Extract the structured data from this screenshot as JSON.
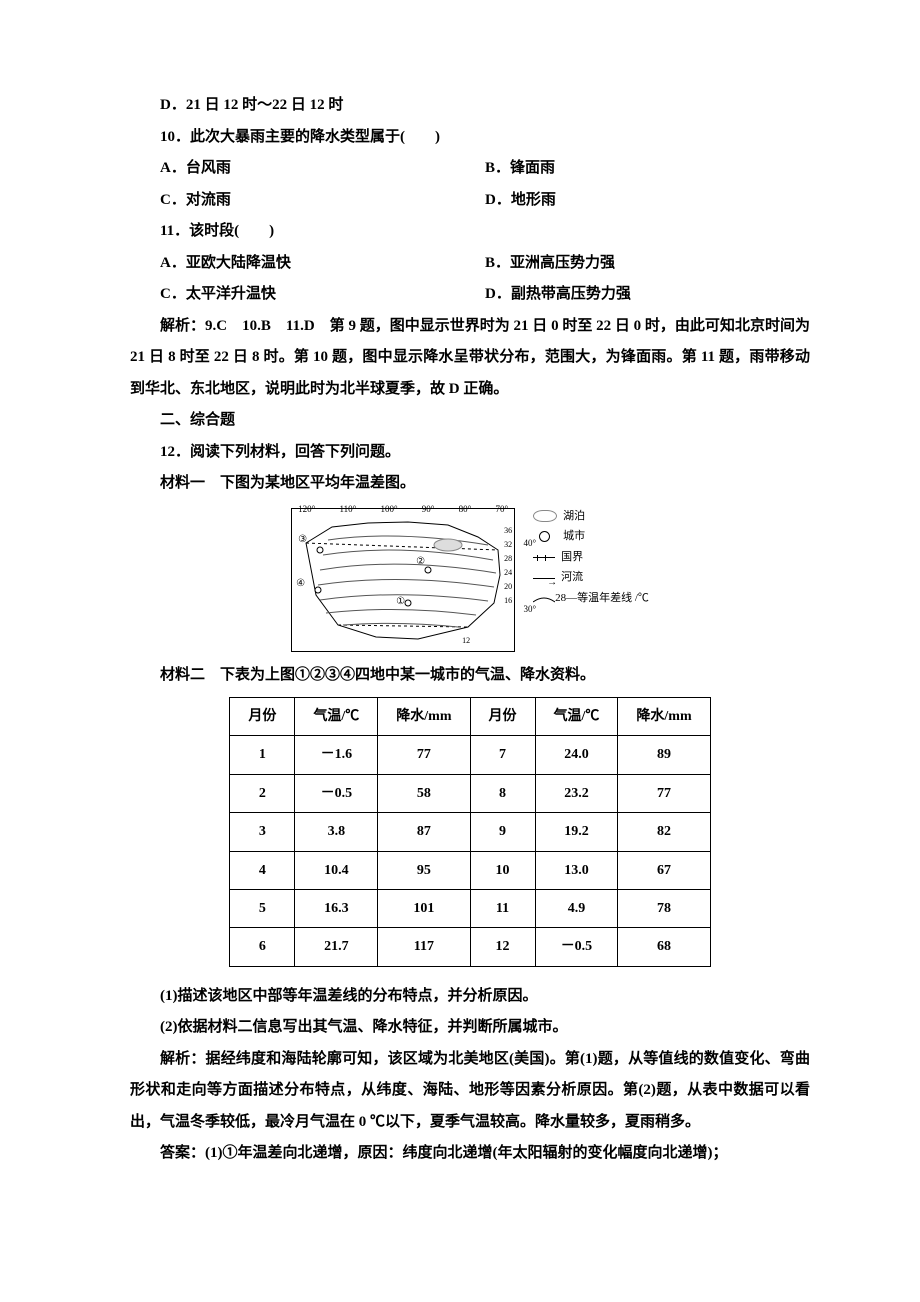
{
  "q9_optD": "D．21 日 12 时～22 日 12 时",
  "q10": {
    "stem": "10．此次大暴雨主要的降水类型属于(　　)",
    "A": "A．台风雨",
    "B": "B．锋面雨",
    "C": "C．对流雨",
    "D": "D．地形雨"
  },
  "q11": {
    "stem": "11．该时段(　　)",
    "A": "A．亚欧大陆降温快",
    "B": "B．亚洲高压势力强",
    "C": "C．太平洋升温快",
    "D": "D．副热带高压势力强"
  },
  "expl1": "解析：9.C　10.B　11.D　第 9 题，图中显示世界时为 21 日 0 时至 22 日 0 时，由此可知北京时间为 21 日 8 时至 22 日 8 时。第 10 题，图中显示降水呈带状分布，范围大，为锋面雨。第 11 题，雨带移动到华北、东北地区，说明此时为北半球夏季，故 D 正确。",
  "sec2": "二、综合题",
  "q12": "12．阅读下列材料，回答下列问题。",
  "mat1": "材料一　下图为某地区平均年温差图。",
  "map": {
    "lon_labels": [
      "120°",
      "110°",
      "100°",
      "90°",
      "80°",
      "70°"
    ],
    "lat_labels": [
      "40°",
      "30°"
    ],
    "iso_values": [
      "36",
      "32",
      "28",
      "24",
      "20",
      "16",
      "12"
    ],
    "city_marks": [
      "①",
      "②",
      "③",
      "④"
    ],
    "legend": {
      "lake": "湖泊",
      "city": "城市",
      "border": "国界",
      "river": "河流",
      "iso": "等温年差线 /℃",
      "iso_sample": "28"
    }
  },
  "mat2": "材料二　下表为上图①②③④四地中某一城市的气温、降水资料。",
  "table": {
    "headers": [
      "月份",
      "气温/℃",
      "降水/mm",
      "月份",
      "气温/℃",
      "降水/mm"
    ],
    "rows": [
      [
        "1",
        "－1.6",
        "77",
        "7",
        "24.0",
        "89"
      ],
      [
        "2",
        "－0.5",
        "58",
        "8",
        "23.2",
        "77"
      ],
      [
        "3",
        "3.8",
        "87",
        "9",
        "19.2",
        "82"
      ],
      [
        "4",
        "10.4",
        "95",
        "10",
        "13.0",
        "67"
      ],
      [
        "5",
        "16.3",
        "101",
        "11",
        "4.9",
        "78"
      ],
      [
        "6",
        "21.7",
        "117",
        "12",
        "－0.5",
        "68"
      ]
    ]
  },
  "sub1": "(1)描述该地区中部等年温差线的分布特点，并分析原因。",
  "sub2": "(2)依据材料二信息写出其气温、降水特征，并判断所属城市。",
  "expl2": "解析：据经纬度和海陆轮廓可知，该区域为北美地区(美国)。第(1)题，从等值线的数值变化、弯曲形状和走向等方面描述分布特点，从纬度、海陆、地形等因素分析原因。第(2)题，从表中数据可以看出，气温冬季较低，最冷月气温在 0 ℃以下，夏季气温较高。降水量较多，夏雨稍多。",
  "ans": "答案：(1)①年温差向北递增，原因：纬度向北递增(年太阳辐射的变化幅度向北递增)；"
}
